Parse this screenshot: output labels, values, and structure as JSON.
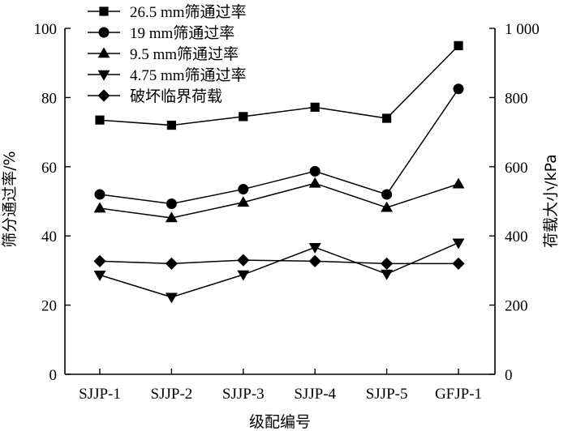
{
  "chart_data": {
    "type": "line",
    "categories": [
      "SJJP-1",
      "SJJP-2",
      "SJJP-3",
      "SJJP-4",
      "SJJP-5",
      "GFJP-1"
    ],
    "xlabel": "级配编号",
    "ylabel_left": "筛分通过率/%",
    "ylabel_right": "荷载大小/kPa",
    "ylim_left": [
      0,
      100
    ],
    "ylim_right": [
      0,
      1000
    ],
    "left_ticks": [
      "0",
      "20",
      "40",
      "60",
      "80",
      "100"
    ],
    "right_ticks": [
      "0",
      "200",
      "400",
      "600",
      "800",
      "1 000"
    ],
    "legend_position": "top-left",
    "series": [
      {
        "name": "26.5 mm筛通过率",
        "marker": "square",
        "axis": "left",
        "values": [
          73.5,
          72,
          74.5,
          77.2,
          74,
          95
        ]
      },
      {
        "name": "19 mm筛通过率",
        "marker": "circle",
        "axis": "left",
        "values": [
          52,
          49.3,
          53.5,
          58.7,
          52,
          82.5
        ]
      },
      {
        "name": "9.5 mm筛通过率",
        "marker": "triangle-up",
        "axis": "left",
        "values": [
          48,
          45.2,
          49.7,
          55.2,
          48.2,
          55
        ]
      },
      {
        "name": "4.75 mm筛通过率",
        "marker": "triangle-down",
        "axis": "left",
        "values": [
          28.7,
          22.3,
          28.8,
          36.7,
          29,
          38
        ]
      },
      {
        "name": "破坏临界荷载",
        "marker": "diamond",
        "axis": "right",
        "values": [
          327,
          320,
          330,
          327,
          320,
          320
        ]
      }
    ]
  }
}
